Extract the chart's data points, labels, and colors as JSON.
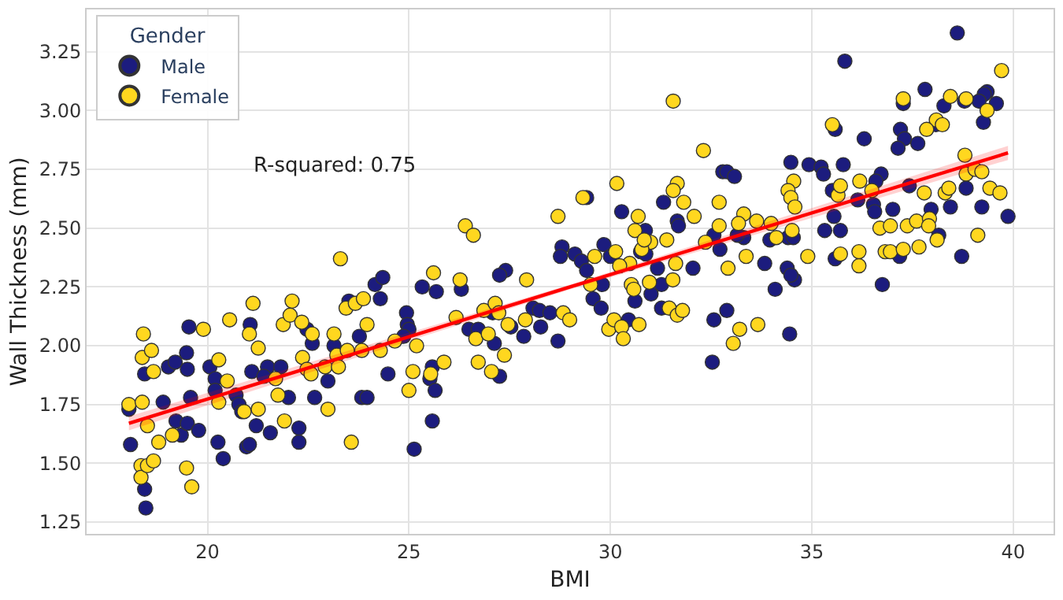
{
  "chart_data": {
    "type": "scatter",
    "xlabel": "BMI",
    "ylabel": "Wall Thickness (mm)",
    "legend_title": "Gender",
    "legend": "top left",
    "grid": true,
    "marker": "circle",
    "xlim": [
      17,
      41
    ],
    "ylim": [
      1.2,
      3.43
    ],
    "xticks": [
      20,
      25,
      30,
      35,
      40
    ],
    "yticks": [
      1.25,
      {
        "value": 1.5,
        "label": "1.50"
      },
      1.75,
      {
        "value": 2.0,
        "label": "2.00"
      },
      2.25,
      {
        "value": 2.5,
        "label": "2.50"
      },
      2.75,
      {
        "value": 3.0,
        "label": "3.00"
      },
      3.25
    ],
    "annotations": [
      "R-squared: 0.75"
    ],
    "series": [
      {
        "name": "Male",
        "color": "#1c1c7e",
        "x": [
          18.05,
          18.09,
          18.44,
          18.47,
          18.44,
          18.9,
          19.03,
          19.2,
          19.48,
          19.5,
          19.54,
          19.58,
          19.22,
          19.35,
          19.5,
          19.78,
          20.06,
          20.19,
          20.19,
          20.26,
          20.39,
          20.71,
          20.78,
          20.85,
          20.97,
          21.04,
          21.06,
          21.1,
          21.21,
          21.49,
          21.4,
          21.56,
          21.82,
          22.01,
          22.27,
          22.27,
          22.47,
          22.6,
          22.66,
          22.99,
          23.14,
          23.51,
          23.77,
          23.83,
          23.96,
          24.16,
          24.29,
          24.48,
          24.35,
          25.33,
          25.68,
          24.94,
          24.96,
          25.0,
          24.87,
          25.58,
          25.52,
          25.65,
          25.58,
          25.13,
          26.3,
          26.49,
          26.72,
          27.08,
          27.12,
          27.25,
          27.53,
          27.85,
          28.08,
          28.24,
          28.27,
          28.5,
          28.7,
          29.57,
          29.8,
          29.77,
          30.45,
          30.61,
          31.01,
          31.27,
          31.27,
          32.57,
          32.53,
          34.09,
          34.57,
          36.75,
          32.89,
          34.45,
          29.41,
          30.28,
          31.32,
          31.66,
          31.69,
          30.87,
          29.84,
          28.8,
          28.76,
          29.12,
          29.28,
          29.41,
          30.0,
          30.75,
          30.88,
          31.17,
          32.05,
          32.57,
          32.72,
          32.79,
          27.4,
          27.25,
          38.61,
          35.82,
          37.81,
          39.35,
          39.28,
          39.15,
          39.58,
          38.79,
          37.27,
          38.28,
          39.26,
          38.08,
          37.2,
          35.58,
          37.3,
          37.14,
          37.63,
          36.3,
          34.48,
          34.93,
          35.23,
          35.29,
          35.78,
          32.89,
          33.08,
          36.72,
          36.59,
          35.51,
          37.42,
          36.14,
          36.53,
          36.56,
          37.01,
          37.96,
          38.44,
          38.83,
          39.22,
          39.87,
          35.55,
          35.32,
          35.71,
          38.15,
          38.72,
          37.18,
          35.58,
          33.83,
          34.39,
          34.48,
          33.31,
          33.15,
          33.96,
          34.41,
          34.54
        ],
        "values": [
          1.73,
          1.58,
          1.39,
          1.31,
          1.88,
          1.76,
          1.91,
          1.93,
          1.97,
          1.9,
          2.08,
          1.78,
          1.68,
          1.62,
          1.67,
          1.64,
          1.91,
          1.86,
          1.81,
          1.59,
          1.52,
          1.79,
          1.75,
          1.72,
          1.57,
          1.58,
          2.09,
          1.89,
          1.66,
          1.91,
          1.87,
          1.63,
          1.91,
          1.78,
          1.65,
          1.59,
          2.07,
          2.01,
          1.78,
          1.85,
          2.0,
          2.19,
          2.04,
          1.78,
          1.78,
          2.26,
          2.2,
          1.88,
          2.29,
          2.25,
          2.23,
          2.14,
          2.09,
          2.07,
          2.04,
          1.91,
          1.86,
          1.81,
          1.68,
          1.56,
          2.24,
          2.07,
          2.07,
          2.14,
          2.01,
          1.87,
          2.08,
          2.04,
          2.16,
          2.15,
          2.08,
          2.14,
          2.02,
          2.2,
          2.26,
          2.16,
          2.11,
          2.19,
          2.22,
          2.16,
          2.26,
          2.11,
          1.93,
          2.24,
          2.28,
          2.26,
          2.15,
          2.05,
          2.63,
          2.57,
          2.61,
          2.53,
          2.51,
          2.49,
          2.43,
          2.42,
          2.38,
          2.39,
          2.36,
          2.32,
          2.38,
          2.4,
          2.39,
          2.33,
          2.33,
          2.47,
          2.41,
          2.74,
          2.32,
          2.3,
          3.33,
          3.21,
          3.09,
          3.08,
          3.07,
          3.04,
          3.03,
          3.04,
          3.03,
          3.02,
          2.95,
          2.94,
          2.92,
          2.92,
          2.88,
          2.84,
          2.86,
          2.88,
          2.78,
          2.77,
          2.76,
          2.73,
          2.77,
          2.74,
          2.72,
          2.73,
          2.7,
          2.66,
          2.68,
          2.62,
          2.6,
          2.57,
          2.58,
          2.58,
          2.59,
          2.67,
          2.59,
          2.55,
          2.55,
          2.49,
          2.49,
          2.47,
          2.38,
          2.38,
          2.37,
          2.35,
          2.33,
          2.3,
          2.46,
          2.47,
          2.45,
          2.46,
          2.46
        ]
      },
      {
        "name": "Female",
        "color": "#ffd71f",
        "x": [
          18.05,
          18.41,
          18.38,
          18.61,
          18.66,
          18.38,
          18.51,
          18.35,
          18.35,
          18.51,
          18.66,
          18.79,
          19.13,
          19.48,
          19.61,
          19.9,
          20.28,
          20.28,
          20.49,
          20.55,
          20.91,
          21.04,
          21.13,
          21.26,
          21.26,
          21.69,
          21.75,
          21.88,
          21.91,
          22.05,
          22.1,
          22.34,
          22.36,
          22.47,
          22.57,
          22.6,
          22.92,
          22.99,
          23.14,
          23.21,
          23.25,
          23.47,
          23.57,
          23.44,
          23.67,
          23.87,
          23.96,
          23.83,
          24.29,
          23.3,
          24.65,
          25.19,
          25.1,
          25.0,
          25.54,
          25.87,
          26.17,
          26.27,
          26.66,
          26.72,
          26.86,
          26.97,
          27.05,
          27.14,
          27.23,
          27.37,
          27.46,
          27.89,
          27.92,
          28.83,
          28.99,
          29.96,
          30.09,
          30.28,
          30.32,
          30.71,
          30.52,
          30.58,
          30.97,
          31.55,
          31.46,
          31.66,
          31.79,
          33.21,
          33.05,
          33.66,
          31.56,
          32.31,
          30.16,
          31.66,
          31.56,
          31.82,
          32.08,
          32.7,
          32.7,
          29.32,
          28.7,
          26.4,
          26.6,
          25.61,
          30.69,
          30.61,
          31.0,
          31.4,
          29.61,
          30.13,
          30.78,
          30.84,
          30.48,
          30.23,
          31.62,
          29.51,
          32.36,
          39.71,
          37.27,
          38.44,
          38.83,
          39.35,
          38.09,
          37.85,
          38.24,
          35.51,
          38.8,
          38.83,
          39.05,
          39.22,
          34.55,
          34.41,
          34.48,
          34.58,
          35.65,
          35.71,
          36.19,
          36.49,
          37.79,
          38.31,
          38.4,
          39.42,
          39.67,
          33.31,
          33.18,
          33.63,
          33.99,
          34.12,
          34.51,
          34.9,
          35.71,
          36.17,
          36.17,
          36.69,
          36.95,
          37.37,
          37.6,
          37.92,
          37.9,
          38.11,
          36.82,
          36.95,
          37.27,
          37.66,
          39.12,
          33.37,
          32.92
        ],
        "values": [
          1.75,
          2.05,
          1.95,
          1.98,
          1.89,
          1.76,
          1.66,
          1.49,
          1.44,
          1.49,
          1.51,
          1.59,
          1.62,
          1.48,
          1.4,
          2.07,
          1.94,
          1.76,
          1.85,
          2.11,
          1.72,
          2.05,
          2.18,
          1.99,
          1.73,
          1.86,
          1.79,
          2.09,
          1.68,
          2.13,
          2.19,
          2.1,
          1.95,
          1.9,
          1.88,
          2.05,
          1.91,
          1.73,
          2.05,
          1.96,
          1.91,
          1.98,
          1.59,
          2.16,
          2.18,
          2.2,
          2.09,
          1.98,
          1.98,
          2.37,
          2.02,
          2.0,
          1.89,
          1.81,
          1.88,
          1.93,
          2.12,
          2.28,
          2.03,
          1.93,
          2.15,
          2.05,
          1.89,
          2.18,
          2.14,
          1.96,
          2.09,
          2.11,
          2.28,
          2.14,
          2.11,
          2.07,
          2.11,
          2.08,
          2.03,
          2.09,
          2.26,
          2.24,
          2.27,
          2.28,
          2.16,
          2.13,
          2.15,
          2.07,
          2.01,
          2.09,
          3.04,
          2.83,
          2.69,
          2.69,
          2.66,
          2.61,
          2.55,
          2.61,
          2.51,
          2.63,
          2.55,
          2.51,
          2.47,
          2.31,
          2.55,
          2.49,
          2.44,
          2.45,
          2.38,
          2.4,
          2.41,
          2.45,
          2.35,
          2.34,
          2.35,
          2.26,
          2.44,
          3.17,
          3.05,
          3.06,
          3.05,
          3.0,
          2.96,
          2.92,
          2.94,
          2.94,
          2.81,
          2.73,
          2.75,
          2.74,
          2.7,
          2.66,
          2.63,
          2.59,
          2.64,
          2.68,
          2.7,
          2.66,
          2.65,
          2.65,
          2.67,
          2.67,
          2.65,
          2.56,
          2.52,
          2.53,
          2.52,
          2.46,
          2.49,
          2.38,
          2.39,
          2.4,
          2.34,
          2.5,
          2.51,
          2.51,
          2.53,
          2.54,
          2.51,
          2.45,
          2.4,
          2.4,
          2.41,
          2.42,
          2.47,
          2.38,
          2.33
        ]
      },
      {
        "type": "line",
        "color": "#ff0000",
        "marker": "none",
        "x": [
          18.05,
          29,
          39.87
        ],
        "values": [
          1.67,
          2.25,
          2.82
        ],
        "lower": [
          1.64,
          2.24,
          2.79
        ],
        "upper": [
          1.7,
          2.26,
          2.85
        ]
      }
    ]
  }
}
